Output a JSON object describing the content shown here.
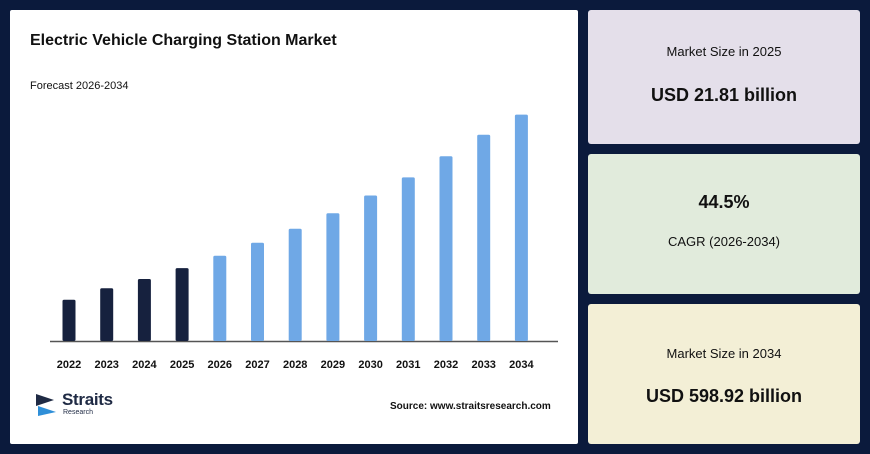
{
  "chart_data": {
    "type": "bar",
    "title": "Electric Vehicle Charging Station Market",
    "subtitle": "Forecast 2026-2034",
    "categories": [
      "2022",
      "2023",
      "2024",
      "2025",
      "2026",
      "2027",
      "2028",
      "2029",
      "2030",
      "2031",
      "2032",
      "2033",
      "2034"
    ],
    "values": [
      9.8,
      12.5,
      14.7,
      17.3,
      20.2,
      23.3,
      26.6,
      30.3,
      34.5,
      38.8,
      43.8,
      48.9,
      53.7
    ],
    "value_unit": "relative bar height (no axis printed)",
    "historical_color": "#16213e",
    "forecast_color": "#6fa8e6",
    "forecast_start": "2026",
    "ylim": [
      0,
      60
    ],
    "grid": false,
    "legend": "none"
  },
  "source": {
    "label": "Source:",
    "text": "www.straitsresearch.com"
  },
  "logo": {
    "word": "Straits",
    "sub": "Research"
  },
  "cards": [
    {
      "label": "Market Size in 2025",
      "value": "USD 21.81 billion"
    },
    {
      "label": "CAGR (2026-2034)",
      "value": "44.5%"
    },
    {
      "label": "Market Size in 2034",
      "value": "USD 598.92 billion"
    }
  ]
}
